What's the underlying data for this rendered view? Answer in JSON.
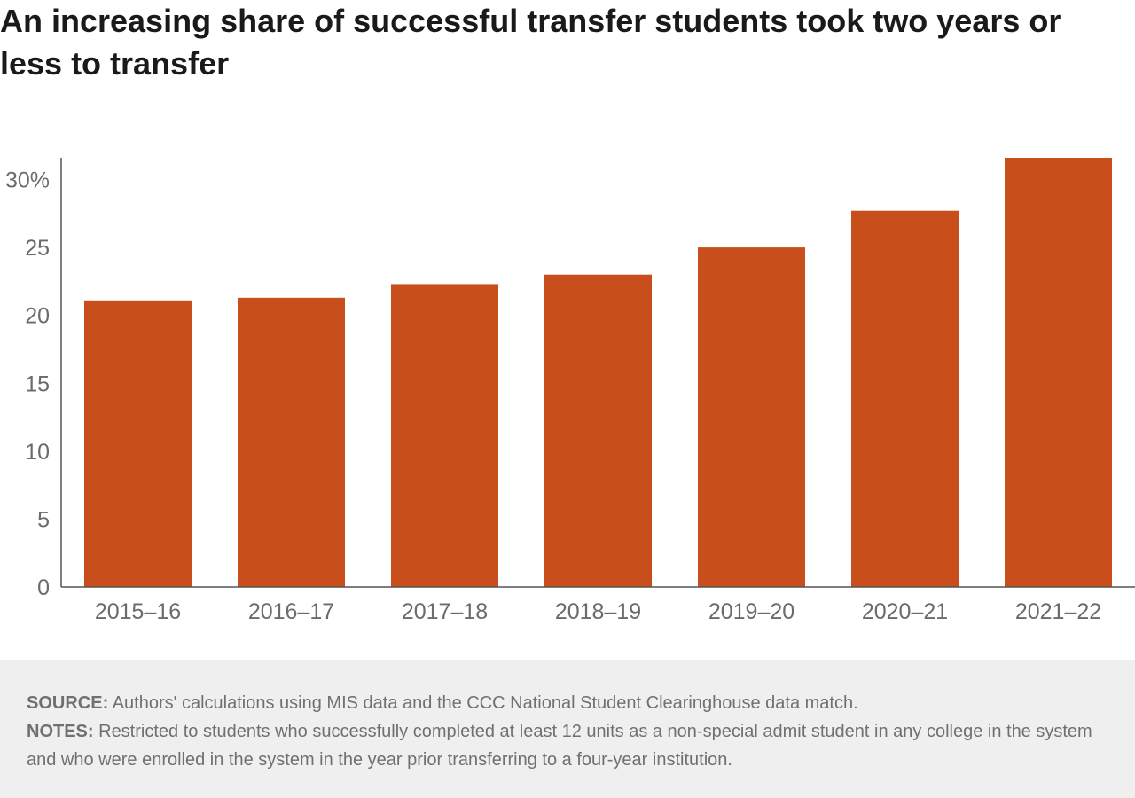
{
  "title": "An increasing share of successful transfer students took two years or less to transfer",
  "chart_data": {
    "type": "bar",
    "categories": [
      "2015–16",
      "2016–17",
      "2017–18",
      "2018–19",
      "2019–20",
      "2020–21",
      "2021–22"
    ],
    "values": [
      21.1,
      21.3,
      22.3,
      23.0,
      25.0,
      27.7,
      31.6
    ],
    "ylim": [
      0,
      31.6
    ],
    "yticks": [
      0,
      5,
      10,
      15,
      20,
      25,
      30
    ],
    "ytick_labels": [
      "0",
      "5",
      "10",
      "15",
      "20",
      "25",
      "30%"
    ],
    "bar_color": "#c84f1b",
    "grid": false,
    "legend": "none"
  },
  "footer": {
    "source_label": "SOURCE:",
    "source_text": " Authors' calculations using MIS data and the CCC National Student Clearinghouse data match.",
    "notes_label": "NOTES:",
    "notes_text": " Restricted to students who successfully completed at least 12 units as a non-special admit student in any college in the system and who were enrolled in the system in the year prior transferring to a four-year institution."
  }
}
